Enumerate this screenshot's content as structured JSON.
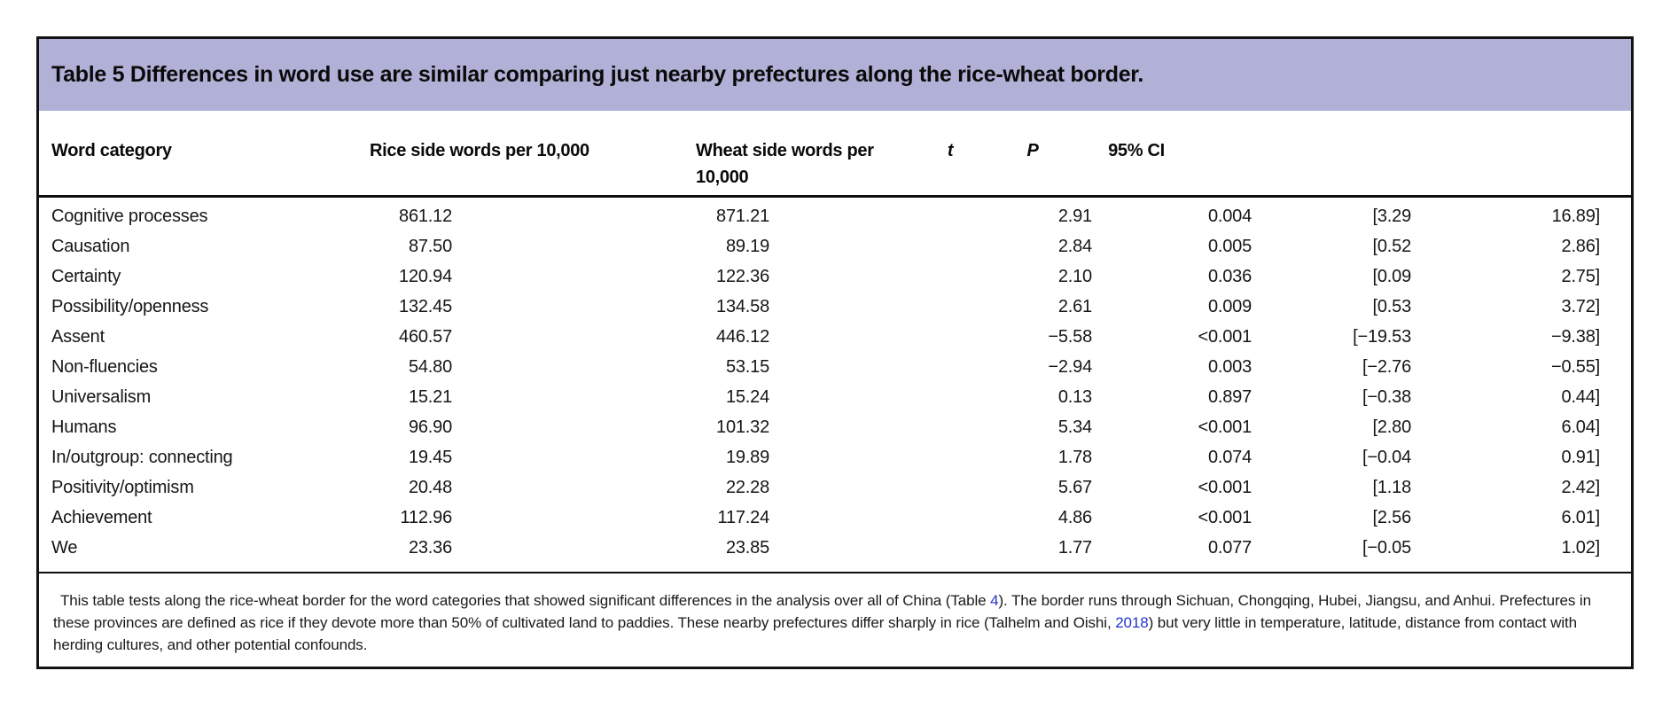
{
  "table": {
    "title": "Table 5 Differences in word use are similar comparing just nearby prefectures along the rice-wheat border.",
    "columns": {
      "word": "Word category",
      "rice": "Rice side words per 10,000",
      "wheat": "Wheat side words per 10,000",
      "t": "t",
      "p": "P",
      "ci": "95% CI"
    },
    "rows": [
      {
        "word": "Cognitive processes",
        "rice": "861.12",
        "wheat": "871.21",
        "t": "2.91",
        "p": "0.004",
        "ci_lo": "[3.29",
        "ci_hi": "16.89]"
      },
      {
        "word": "Causation",
        "rice": "87.50",
        "wheat": "89.19",
        "t": "2.84",
        "p": "0.005",
        "ci_lo": "[0.52",
        "ci_hi": "2.86]"
      },
      {
        "word": "Certainty",
        "rice": "120.94",
        "wheat": "122.36",
        "t": "2.10",
        "p": "0.036",
        "ci_lo": "[0.09",
        "ci_hi": "2.75]"
      },
      {
        "word": "Possibility/openness",
        "rice": "132.45",
        "wheat": "134.58",
        "t": "2.61",
        "p": "0.009",
        "ci_lo": "[0.53",
        "ci_hi": "3.72]"
      },
      {
        "word": "Assent",
        "rice": "460.57",
        "wheat": "446.12",
        "t": "−5.58",
        "p": "<0.001",
        "ci_lo": "[−19.53",
        "ci_hi": "−9.38]"
      },
      {
        "word": "Non-fluencies",
        "rice": "54.80",
        "wheat": "53.15",
        "t": "−2.94",
        "p": "0.003",
        "ci_lo": "[−2.76",
        "ci_hi": "−0.55]"
      },
      {
        "word": "Universalism",
        "rice": "15.21",
        "wheat": "15.24",
        "t": "0.13",
        "p": "0.897",
        "ci_lo": "[−0.38",
        "ci_hi": "0.44]"
      },
      {
        "word": "Humans",
        "rice": "96.90",
        "wheat": "101.32",
        "t": "5.34",
        "p": "<0.001",
        "ci_lo": "[2.80",
        "ci_hi": "6.04]"
      },
      {
        "word": "In/outgroup: connecting",
        "rice": "19.45",
        "wheat": "19.89",
        "t": "1.78",
        "p": "0.074",
        "ci_lo": "[−0.04",
        "ci_hi": "0.91]"
      },
      {
        "word": "Positivity/optimism",
        "rice": "20.48",
        "wheat": "22.28",
        "t": "5.67",
        "p": "<0.001",
        "ci_lo": "[1.18",
        "ci_hi": "2.42]"
      },
      {
        "word": "Achievement",
        "rice": "112.96",
        "wheat": "117.24",
        "t": "4.86",
        "p": "<0.001",
        "ci_lo": "[2.56",
        "ci_hi": "6.01]"
      },
      {
        "word": "We",
        "rice": "23.36",
        "wheat": "23.85",
        "t": "1.77",
        "p": "0.077",
        "ci_lo": "[−0.05",
        "ci_hi": "1.02]"
      }
    ],
    "footnote": {
      "part1": "This table tests along the rice-wheat border for the word categories that showed significant differences in the analysis over all of China (Table ",
      "link1": "4",
      "part2": "). The border runs through Sichuan, Chongqing, Hubei, Jiangsu, and Anhui. Prefectures in these provinces are defined as rice if they devote more than 50% of cultivated land to paddies. These nearby prefectures differ sharply in rice (Talhelm and Oishi, ",
      "link2": "2018",
      "part3": ") but very little in temperature, latitude, distance from contact with herding cultures, and other potential confounds."
    },
    "colors": {
      "band": "#b1b0d7",
      "link": "#2434cb",
      "border": "#131313",
      "text": "#161616"
    }
  }
}
